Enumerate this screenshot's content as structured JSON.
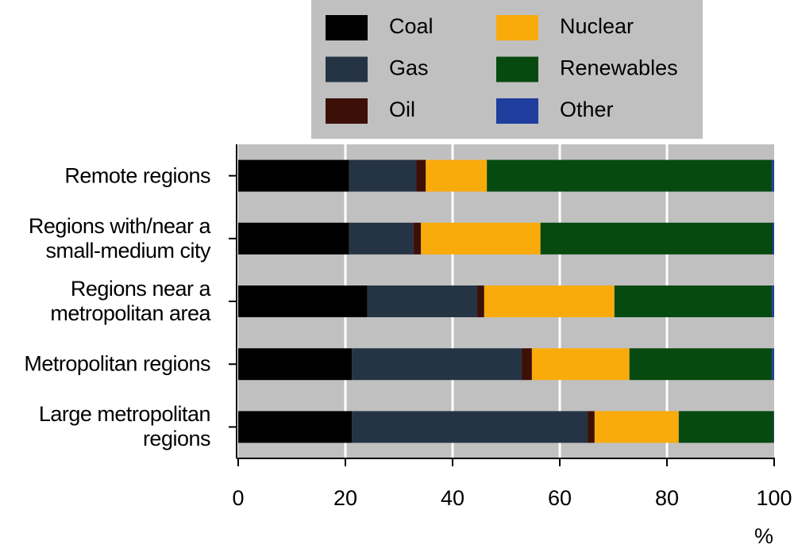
{
  "chart_data": {
    "type": "stacked-bar-horizontal",
    "categories": [
      "Remote regions",
      "Regions with/near a\nsmall-medium city",
      "Regions near a\nmetropolitan area",
      "Metropolitan regions",
      "Large metropolitan\nregions"
    ],
    "series": [
      {
        "name": "Coal",
        "color": "#000000",
        "values": [
          20.7,
          20.7,
          24.1,
          21.2,
          21.2
        ]
      },
      {
        "name": "Gas",
        "color": "#253445",
        "values": [
          12.5,
          12.0,
          20.5,
          31.7,
          44.0
        ]
      },
      {
        "name": "Oil",
        "color": "#3c1007",
        "values": [
          1.8,
          1.4,
          1.3,
          1.9,
          1.3
        ]
      },
      {
        "name": "Nuclear",
        "color": "#f9ab0c",
        "values": [
          11.4,
          22.3,
          24.3,
          18.2,
          15.7
        ]
      },
      {
        "name": "Renewables",
        "color": "#074a10",
        "values": [
          53.2,
          43.3,
          29.4,
          26.6,
          17.7
        ]
      },
      {
        "name": "Other",
        "color": "#1f3d9c",
        "values": [
          0.4,
          0.3,
          0.4,
          0.4,
          0.1
        ]
      }
    ],
    "xlabel": "%",
    "xlim": [
      0,
      100
    ],
    "xticks": [
      0,
      20,
      40,
      60,
      80,
      100
    ],
    "grid": true
  }
}
